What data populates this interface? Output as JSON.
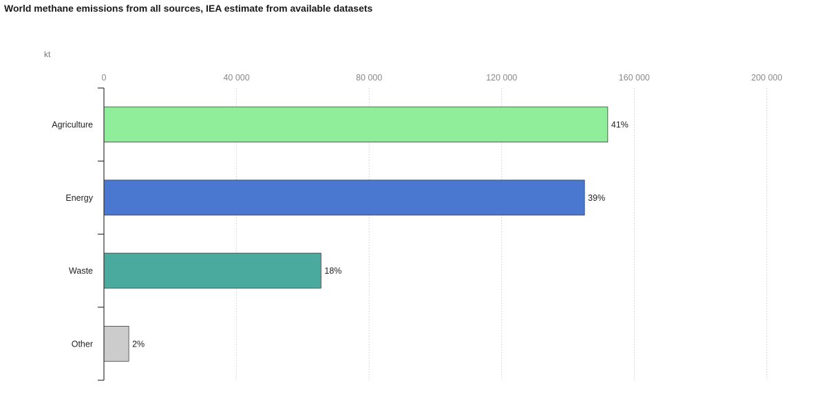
{
  "chart_data": {
    "type": "bar",
    "orientation": "horizontal",
    "title": "World methane emissions from all sources, IEA estimate from available datasets",
    "unit": "kt",
    "categories": [
      "Agriculture",
      "Energy",
      "Waste",
      "Other"
    ],
    "values": [
      152000,
      145000,
      65500,
      7500
    ],
    "data_labels": [
      "41%",
      "39%",
      "18%",
      "2%"
    ],
    "colors": [
      "#90ee9a",
      "#4a78d0",
      "#4aaa9e",
      "#cccccc"
    ],
    "xlim": [
      0,
      200000
    ],
    "xticks": [
      0,
      40000,
      80000,
      120000,
      160000,
      200000
    ],
    "xtick_labels": [
      "0",
      "40 000",
      "80 000",
      "120 000",
      "160 000",
      "200 000"
    ],
    "grid": true,
    "axis_position": "top"
  }
}
